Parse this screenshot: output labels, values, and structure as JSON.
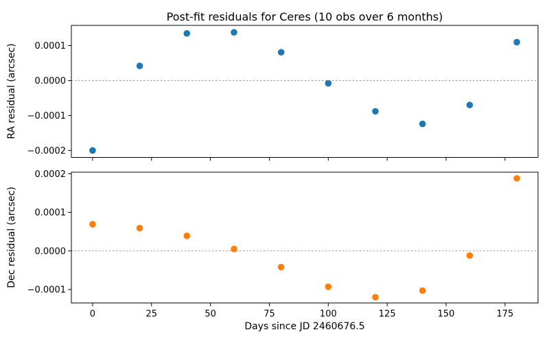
{
  "figure": {
    "background": "#ffffff"
  },
  "chart_data": {
    "type": "scatter",
    "title": "Post-fit residuals for Ceres (10 obs over 6 months)",
    "xlabel": "Days since JD 2460676.5",
    "x": [
      0,
      20,
      40,
      60,
      80,
      100,
      120,
      140,
      160,
      180
    ],
    "xlim": [
      -9,
      189
    ],
    "xticks": [
      0,
      25,
      50,
      75,
      100,
      125,
      150,
      175
    ],
    "xtick_labels": [
      "0",
      "25",
      "50",
      "75",
      "100",
      "125",
      "150",
      "175"
    ],
    "grid": false,
    "legend": "none",
    "zero_line": {
      "color": "#9e9e9e",
      "style": "dashed"
    },
    "axis_color": "#000000",
    "subplots": [
      {
        "name": "RA",
        "ylabel": "RA residual (arcsec)",
        "marker_color": "#1f77b4",
        "ylim": [
          -0.00022,
          0.000158
        ],
        "yticks": [
          0.0001,
          0.0,
          -0.0001,
          -0.0002
        ],
        "ytick_labels": [
          "0.0001",
          "0.0000",
          "−0.0001",
          "−0.0002"
        ],
        "values": [
          -0.0002,
          4.2e-05,
          0.000135,
          0.000138,
          8.1e-05,
          -8e-06,
          -8.8e-05,
          -0.000124,
          -7e-05,
          0.00011
        ]
      },
      {
        "name": "Dec",
        "ylabel": "Dec residual (arcsec)",
        "marker_color": "#ff7f0e",
        "ylim": [
          -0.000135,
          0.000204
        ],
        "yticks": [
          0.0002,
          0.0001,
          0.0,
          -0.0001
        ],
        "ytick_labels": [
          "0.0002",
          "0.0001",
          "0.0000",
          "−0.0001"
        ],
        "values": [
          6.9e-05,
          5.9e-05,
          3.9e-05,
          5e-06,
          -4.2e-05,
          -9.3e-05,
          -0.00012,
          -0.000103,
          -1.2e-05,
          0.000188
        ]
      }
    ]
  }
}
